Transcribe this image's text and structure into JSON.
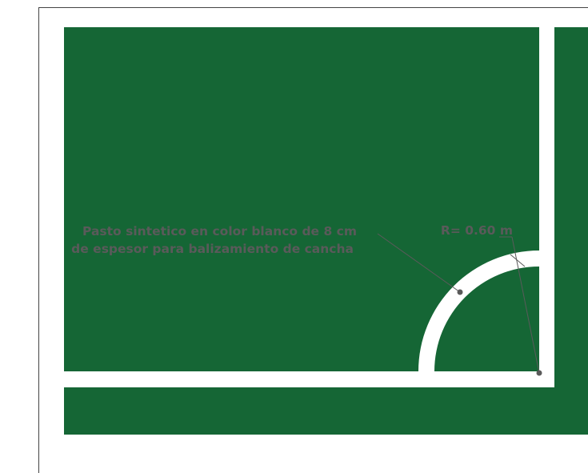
{
  "annotations": {
    "material_line1": "Pasto sintetico en color blanco de 8 cm",
    "material_line2": "de espesor para balizamiento de cancha",
    "radius": "R= 0.60 m"
  },
  "colors": {
    "turf": "#156635",
    "marking": "#ffffff",
    "annotation": "#5a5a5a",
    "border": "#444444"
  }
}
